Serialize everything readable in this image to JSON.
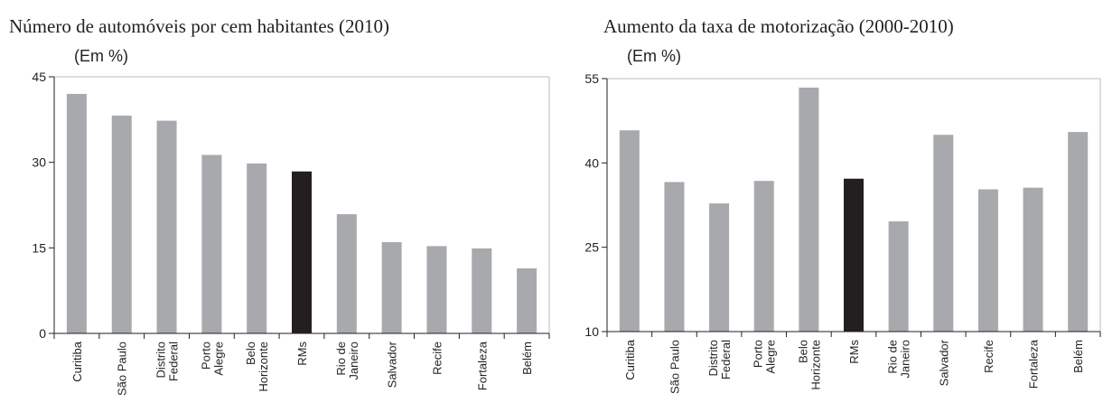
{
  "chart_data": [
    {
      "type": "bar",
      "title": "Número de automóveis por cem habitantes (2010)",
      "subtitle": "(Em %)",
      "categories": [
        [
          "Curitiba"
        ],
        [
          "São Paulo"
        ],
        [
          "Distrito",
          "Federal"
        ],
        [
          "Porto",
          "Alegre"
        ],
        [
          "Belo",
          "Horizonte"
        ],
        [
          "RMs"
        ],
        [
          "Rio de",
          "Janeiro"
        ],
        [
          "Salvador"
        ],
        [
          "Recife"
        ],
        [
          "Fortaleza"
        ],
        [
          "Belém"
        ]
      ],
      "values": [
        42,
        38.2,
        37.3,
        31.3,
        29.8,
        28.4,
        20.9,
        16,
        15.3,
        14.9,
        11.4
      ],
      "colors": [
        "#a7a9ac",
        "#a7a9ac",
        "#a7a9ac",
        "#a7a9ac",
        "#a7a9ac",
        "#231f20",
        "#a7a9ac",
        "#a7a9ac",
        "#a7a9ac",
        "#a7a9ac",
        "#a7a9ac"
      ],
      "ylim": [
        0,
        45
      ],
      "yticks": [
        0,
        15,
        30,
        45
      ],
      "grid": false
    },
    {
      "type": "bar",
      "title": "Aumento da taxa de motorização (2000-2010)",
      "subtitle": "(Em %)",
      "categories": [
        [
          "Curitiba"
        ],
        [
          "São Paulo"
        ],
        [
          "Distrito",
          "Federal"
        ],
        [
          "Porto",
          "Alegre"
        ],
        [
          "Belo",
          "Horizonte"
        ],
        [
          "RMs"
        ],
        [
          "Rio de",
          "Janeiro"
        ],
        [
          "Salvador"
        ],
        [
          "Recife"
        ],
        [
          "Fortaleza"
        ],
        [
          "Belém"
        ]
      ],
      "values": [
        45.8,
        36.6,
        32.8,
        36.8,
        53.4,
        37.2,
        29.6,
        45,
        35.3,
        35.6,
        45.5
      ],
      "colors": [
        "#a7a9ac",
        "#a7a9ac",
        "#a7a9ac",
        "#a7a9ac",
        "#a7a9ac",
        "#231f20",
        "#a7a9ac",
        "#a7a9ac",
        "#a7a9ac",
        "#a7a9ac",
        "#a7a9ac"
      ],
      "ylim": [
        10,
        55
      ],
      "yticks": [
        10,
        25,
        40,
        55
      ],
      "grid": false
    }
  ]
}
